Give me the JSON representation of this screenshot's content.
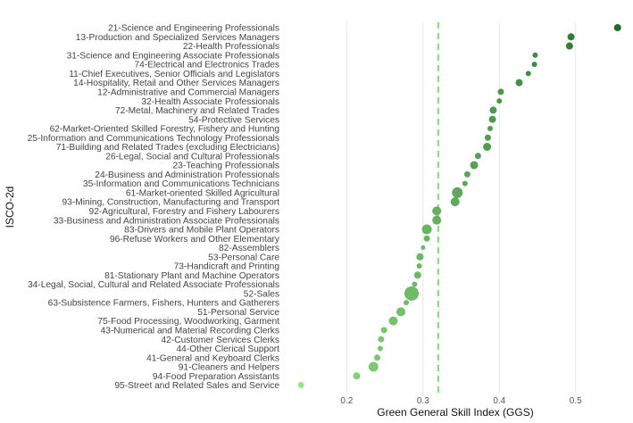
{
  "chart_data": {
    "type": "scatter",
    "orientation": "categorical-y",
    "xlabel": "Green General Skill Index (GGS)",
    "ylabel": "ISCO-2d",
    "xlim": [
      0.12,
      0.56
    ],
    "xticks": [
      0.2,
      0.3,
      0.4,
      0.5
    ],
    "xtick_labels": [
      "0.2",
      "0.3",
      "0.4",
      "0.5"
    ],
    "reference_line": 0.32,
    "grid": "vertical",
    "points": [
      {
        "label": "21-Science and Engineering Professionals",
        "value": 0.555,
        "size": 4
      },
      {
        "label": "13-Production and Specialized Services Managers",
        "value": 0.494,
        "size": 4
      },
      {
        "label": "22-Health Professionals",
        "value": 0.492,
        "size": 4
      },
      {
        "label": "31-Science and Engineering Associate Professionals",
        "value": 0.447,
        "size": 3
      },
      {
        "label": "74-Electrical and Electronics Trades",
        "value": 0.446,
        "size": 3
      },
      {
        "label": "11-Chief Executives, Senior Officials and Legislators",
        "value": 0.438,
        "size": 3
      },
      {
        "label": "14-Hospitality, Retail and Other Services Managers",
        "value": 0.426,
        "size": 4
      },
      {
        "label": "12-Administrative and Commercial Managers",
        "value": 0.402,
        "size": 3.5
      },
      {
        "label": "32-Health Associate Professionals",
        "value": 0.4,
        "size": 3
      },
      {
        "label": "72-Metal, Machinery and Related Trades",
        "value": 0.392,
        "size": 4
      },
      {
        "label": "54-Protective Services",
        "value": 0.391,
        "size": 4
      },
      {
        "label": "62-Market-Oriented Skilled Forestry, Fishery and Hunting",
        "value": 0.388,
        "size": 3
      },
      {
        "label": "25-Information and Communications Technology Professionals",
        "value": 0.385,
        "size": 3.5
      },
      {
        "label": "71-Building and Related Trades (excluding Electricians)",
        "value": 0.384,
        "size": 4.5
      },
      {
        "label": "26-Legal, Social and Cultural Professionals",
        "value": 0.372,
        "size": 3.5
      },
      {
        "label": "23-Teaching Professionals",
        "value": 0.367,
        "size": 4.5
      },
      {
        "label": "24-Business and Administration Professionals",
        "value": 0.358,
        "size": 3.5
      },
      {
        "label": "35-Information and Communications Technicians",
        "value": 0.355,
        "size": 3
      },
      {
        "label": "61-Market-oriented Skilled Agricultural",
        "value": 0.345,
        "size": 6
      },
      {
        "label": "93-Mining, Construction, Manufacturing and Transport",
        "value": 0.342,
        "size": 5
      },
      {
        "label": "92-Agricultural, Forestry and Fishery Labourers",
        "value": 0.318,
        "size": 5
      },
      {
        "label": "33-Business and Administration Associate Professionals",
        "value": 0.318,
        "size": 5
      },
      {
        "label": "83-Drivers and Mobile Plant Operators",
        "value": 0.305,
        "size": 5.5
      },
      {
        "label": "96-Refuse Workers and Other Elementary",
        "value": 0.305,
        "size": 3.5
      },
      {
        "label": "82-Assemblers",
        "value": 0.3,
        "size": 2.5
      },
      {
        "label": "53-Personal Care",
        "value": 0.296,
        "size": 4
      },
      {
        "label": "73-Handicraft and Printing",
        "value": 0.295,
        "size": 3
      },
      {
        "label": "81-Stationary Plant and Machine Operators",
        "value": 0.293,
        "size": 4
      },
      {
        "label": "34-Legal, Social, Cultural and Related Associate Professionals",
        "value": 0.289,
        "size": 3
      },
      {
        "label": "52-Sales",
        "value": 0.285,
        "size": 8
      },
      {
        "label": "63-Subsistence Farmers, Fishers, Hunters and Gatherers",
        "value": 0.278,
        "size": 3
      },
      {
        "label": "51-Personal Service",
        "value": 0.271,
        "size": 5
      },
      {
        "label": "75-Food Processing, Woodworking, Garment",
        "value": 0.261,
        "size": 5
      },
      {
        "label": "43-Numerical and Material Recording Clerks",
        "value": 0.249,
        "size": 3.5
      },
      {
        "label": "42-Customer Services Clerks",
        "value": 0.245,
        "size": 3.5
      },
      {
        "label": "44-Other Clerical Support",
        "value": 0.244,
        "size": 3
      },
      {
        "label": "41-General and Keyboard Clerks",
        "value": 0.24,
        "size": 3.5
      },
      {
        "label": "91-Cleaners and Helpers",
        "value": 0.235,
        "size": 5.5
      },
      {
        "label": "94-Food Preparation Assistants",
        "value": 0.213,
        "size": 4
      },
      {
        "label": "95-Street and Related Sales and Service",
        "value": 0.14,
        "size": 3.5
      }
    ],
    "color_scale": {
      "low": "#9ae389",
      "high": "#1f6b2a"
    },
    "reference_line_color": "#7ee07a",
    "grid_color": "#e6e6e6"
  }
}
